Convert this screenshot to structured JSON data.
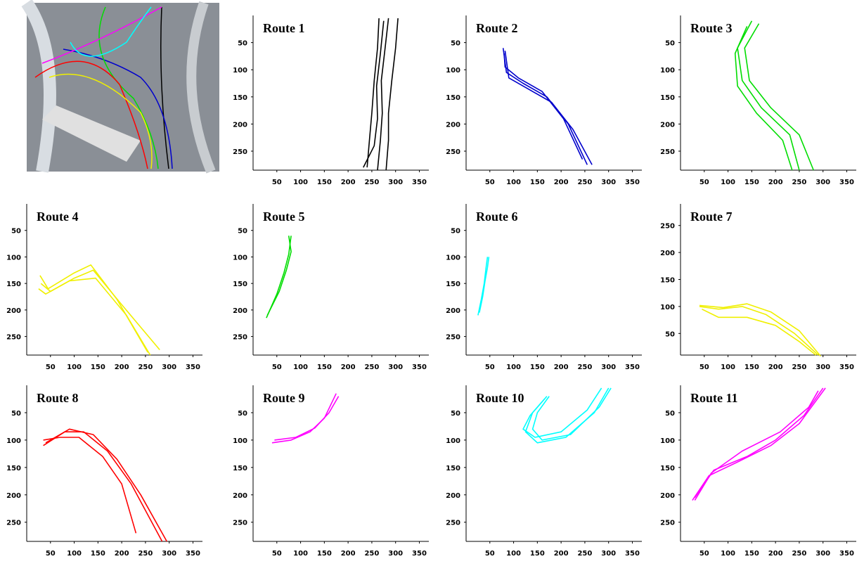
{
  "chart_data": [
    {
      "type": "line",
      "title": "Route 1",
      "xlim": [
        0,
        370
      ],
      "ylim": [
        285,
        0
      ],
      "xticks": [
        50,
        100,
        150,
        200,
        250,
        300,
        350
      ],
      "yticks": [
        50,
        100,
        150,
        200,
        250
      ],
      "series": [
        {
          "color": "#000000",
          "x": [
            265,
            262,
            255,
            250,
            245,
            240
          ],
          "values": [
            5,
            60,
            120,
            180,
            230,
            280
          ]
        },
        {
          "color": "#000000",
          "x": [
            285,
            278,
            270,
            272,
            268,
            262
          ],
          "values": [
            5,
            60,
            120,
            180,
            230,
            285
          ]
        },
        {
          "color": "#000000",
          "x": [
            305,
            300,
            292,
            285,
            285,
            280
          ],
          "values": [
            5,
            60,
            120,
            180,
            230,
            285
          ]
        },
        {
          "color": "#000000",
          "x": [
            275,
            268,
            260,
            262,
            255,
            232
          ],
          "values": [
            10,
            70,
            130,
            190,
            240,
            280
          ]
        }
      ]
    },
    {
      "type": "line",
      "title": "Route 2",
      "xlim": [
        0,
        370
      ],
      "ylim": [
        285,
        0
      ],
      "xticks": [
        50,
        100,
        150,
        200,
        250,
        300,
        350
      ],
      "yticks": [
        50,
        100,
        150,
        200,
        250
      ],
      "series": [
        {
          "color": "#0000cc",
          "x": [
            78,
            85,
            120,
            170,
            215,
            255
          ],
          "values": [
            60,
            105,
            125,
            150,
            200,
            275
          ]
        },
        {
          "color": "#0000cc",
          "x": [
            82,
            90,
            130,
            180,
            225,
            265
          ],
          "values": [
            65,
            115,
            135,
            160,
            210,
            275
          ]
        },
        {
          "color": "#0000cc",
          "x": [
            80,
            82,
            110,
            160,
            205,
            245
          ],
          "values": [
            70,
            95,
            115,
            140,
            190,
            265
          ]
        }
      ]
    },
    {
      "type": "line",
      "title": "Route 3",
      "xlim": [
        0,
        370
      ],
      "ylim": [
        285,
        0
      ],
      "xticks": [
        50,
        100,
        150,
        200,
        250,
        300,
        350
      ],
      "yticks": [
        50,
        100,
        150,
        200,
        250
      ],
      "series": [
        {
          "color": "#00dd00",
          "x": [
            150,
            120,
            130,
            170,
            230,
            250
          ],
          "values": [
            10,
            60,
            120,
            170,
            220,
            285
          ]
        },
        {
          "color": "#00dd00",
          "x": [
            165,
            135,
            145,
            190,
            250,
            280
          ],
          "values": [
            15,
            60,
            120,
            170,
            220,
            285
          ]
        },
        {
          "color": "#00dd00",
          "x": [
            140,
            115,
            120,
            160,
            215,
            235
          ],
          "values": [
            20,
            70,
            130,
            180,
            230,
            285
          ]
        }
      ]
    },
    {
      "type": "line",
      "title": "Route 4",
      "xlim": [
        0,
        370
      ],
      "ylim": [
        285,
        0
      ],
      "xticks": [
        50,
        100,
        150,
        200,
        250,
        300,
        350
      ],
      "yticks": [
        50,
        100,
        150,
        200,
        250
      ],
      "series": [
        {
          "color": "#f0f000",
          "x": [
            28,
            45,
            100,
            135,
            190,
            255
          ],
          "values": [
            135,
            160,
            130,
            115,
            180,
            280
          ]
        },
        {
          "color": "#f0f000",
          "x": [
            30,
            50,
            100,
            140,
            200,
            280
          ],
          "values": [
            150,
            165,
            140,
            125,
            190,
            275
          ]
        },
        {
          "color": "#f0f000",
          "x": [
            25,
            40,
            90,
            145,
            210,
            260
          ],
          "values": [
            160,
            170,
            145,
            140,
            210,
            285
          ]
        }
      ]
    },
    {
      "type": "line",
      "title": "Route 5",
      "xlim": [
        0,
        370
      ],
      "ylim": [
        285,
        0
      ],
      "xticks": [
        50,
        100,
        150,
        200,
        250,
        300,
        350
      ],
      "yticks": [
        50,
        100,
        150,
        200,
        250
      ],
      "series": [
        {
          "color": "#00dd00",
          "x": [
            28,
            50,
            65,
            75,
            80
          ],
          "values": [
            215,
            170,
            130,
            95,
            60
          ]
        },
        {
          "color": "#00dd00",
          "x": [
            30,
            55,
            70,
            80,
            75
          ],
          "values": [
            210,
            165,
            125,
            90,
            60
          ]
        }
      ]
    },
    {
      "type": "line",
      "title": "Route 6",
      "xlim": [
        0,
        370
      ],
      "ylim": [
        285,
        0
      ],
      "xticks": [
        50,
        100,
        150,
        200,
        250,
        300,
        350
      ],
      "yticks": [
        50,
        100,
        150,
        200,
        250
      ],
      "series": [
        {
          "color": "#00ffff",
          "x": [
            25,
            32,
            38,
            42,
            45
          ],
          "values": [
            210,
            180,
            150,
            120,
            100
          ]
        },
        {
          "color": "#00ffff",
          "x": [
            28,
            35,
            40,
            45,
            48
          ],
          "values": [
            205,
            175,
            145,
            120,
            100
          ]
        }
      ]
    },
    {
      "type": "line",
      "title": "Route 7",
      "xlim": [
        0,
        370
      ],
      "ylim": [
        10,
        290
      ],
      "xticks": [
        50,
        100,
        150,
        200,
        250,
        300,
        350
      ],
      "yticks": [
        50,
        100,
        150,
        200,
        250
      ],
      "series": [
        {
          "color": "#f0f000",
          "x": [
            40,
            80,
            130,
            180,
            240,
            290
          ],
          "values": [
            100,
            95,
            100,
            85,
            50,
            10
          ]
        },
        {
          "color": "#f0f000",
          "x": [
            45,
            80,
            140,
            200,
            250,
            285
          ],
          "values": [
            95,
            80,
            80,
            65,
            35,
            10
          ]
        },
        {
          "color": "#f0f000",
          "x": [
            40,
            90,
            140,
            190,
            250,
            295
          ],
          "values": [
            102,
            98,
            105,
            90,
            55,
            8
          ]
        }
      ]
    },
    {
      "type": "line",
      "title": "Route 8",
      "xlim": [
        0,
        370
      ],
      "ylim": [
        285,
        0
      ],
      "xticks": [
        50,
        100,
        150,
        200,
        250,
        300,
        350
      ],
      "yticks": [
        50,
        100,
        150,
        200,
        250
      ],
      "series": [
        {
          "color": "#ff0000",
          "x": [
            35,
            80,
            120,
            170,
            220,
            285
          ],
          "values": [
            110,
            85,
            85,
            120,
            180,
            285
          ]
        },
        {
          "color": "#ff0000",
          "x": [
            40,
            90,
            140,
            190,
            240,
            295
          ],
          "values": [
            105,
            80,
            90,
            135,
            200,
            285
          ]
        },
        {
          "color": "#ff0000",
          "x": [
            35,
            70,
            110,
            160,
            200,
            230
          ],
          "values": [
            100,
            95,
            95,
            130,
            180,
            270
          ]
        }
      ]
    },
    {
      "type": "line",
      "title": "Route 9",
      "xlim": [
        0,
        370
      ],
      "ylim": [
        285,
        0
      ],
      "xticks": [
        50,
        100,
        150,
        200,
        250,
        300,
        350
      ],
      "yticks": [
        50,
        100,
        150,
        200,
        250
      ],
      "series": [
        {
          "color": "#ff00ff",
          "x": [
            40,
            80,
            120,
            150,
            175
          ],
          "values": [
            105,
            100,
            85,
            60,
            15
          ]
        },
        {
          "color": "#ff00ff",
          "x": [
            45,
            90,
            130,
            160,
            180
          ],
          "values": [
            100,
            95,
            78,
            50,
            20
          ]
        }
      ]
    },
    {
      "type": "line",
      "title": "Route 10",
      "xlim": [
        0,
        370
      ],
      "ylim": [
        285,
        0
      ],
      "xticks": [
        50,
        100,
        150,
        200,
        250,
        300,
        350
      ],
      "yticks": [
        50,
        100,
        150,
        200,
        250
      ],
      "series": [
        {
          "color": "#00ffff",
          "x": [
            170,
            140,
            125,
            150,
            210,
            270,
            300
          ],
          "values": [
            20,
            50,
            85,
            105,
            95,
            50,
            5
          ]
        },
        {
          "color": "#00ffff",
          "x": [
            165,
            135,
            120,
            145,
            200,
            255,
            285
          ],
          "values": [
            25,
            55,
            80,
            95,
            85,
            45,
            5
          ]
        },
        {
          "color": "#00ffff",
          "x": [
            175,
            150,
            140,
            160,
            220,
            280,
            305
          ],
          "values": [
            20,
            50,
            80,
            100,
            90,
            40,
            5
          ]
        }
      ]
    },
    {
      "type": "line",
      "title": "Route 11",
      "xlim": [
        0,
        370
      ],
      "ylim": [
        285,
        0
      ],
      "xticks": [
        50,
        100,
        150,
        200,
        250,
        300,
        350
      ],
      "yticks": [
        50,
        100,
        150,
        200,
        250
      ],
      "series": [
        {
          "color": "#ff00ff",
          "x": [
            25,
            60,
            120,
            190,
            250,
            305
          ],
          "values": [
            210,
            165,
            140,
            110,
            70,
            5
          ]
        },
        {
          "color": "#ff00ff",
          "x": [
            30,
            70,
            140,
            200,
            260,
            300
          ],
          "values": [
            205,
            155,
            130,
            100,
            55,
            5
          ]
        },
        {
          "color": "#ff00ff",
          "x": [
            30,
            65,
            130,
            210,
            270,
            290
          ],
          "values": [
            210,
            160,
            120,
            85,
            40,
            10
          ]
        }
      ]
    }
  ]
}
